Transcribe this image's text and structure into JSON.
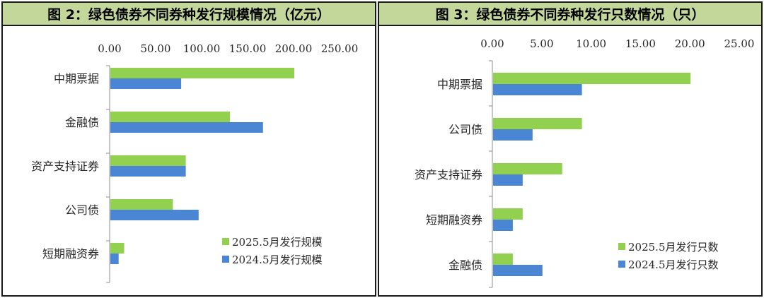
{
  "panels": [
    {
      "title": "图 2：绿色债券不同券种发行规模情况（亿元）"
    },
    {
      "title": "图 3：绿色债券不同券种发行只数情况（只）"
    }
  ],
  "chart_data": [
    {
      "type": "bar",
      "orientation": "horizontal",
      "title": "图 2：绿色债券不同券种发行规模情况（亿元）",
      "categories": [
        "中期票据",
        "金融债",
        "资产支持证券",
        "公司债",
        "短期融资券"
      ],
      "series": [
        {
          "name": "2025.5月发行规模",
          "color": "#92d050",
          "values": [
            200,
            130,
            82,
            68,
            15
          ]
        },
        {
          "name": "2024.5月发行规模",
          "color": "#4a86d4",
          "values": [
            77,
            166,
            82,
            96,
            9
          ]
        }
      ],
      "xlim": [
        0,
        250
      ],
      "xticks": [
        "0.00",
        "50.00",
        "100.00",
        "150.00",
        "200.00",
        "250.00"
      ],
      "axis_position": "top",
      "legend_position": "bottom-right"
    },
    {
      "type": "bar",
      "orientation": "horizontal",
      "title": "图 3：绿色债券不同券种发行只数情况（只）",
      "categories": [
        "中期票据",
        "公司债",
        "资产支持证券",
        "短期融资券",
        "金融债"
      ],
      "series": [
        {
          "name": "2025.5月发行只数",
          "color": "#92d050",
          "values": [
            20,
            9,
            7,
            3,
            2
          ]
        },
        {
          "name": "2024.5月发行只数",
          "color": "#4a86d4",
          "values": [
            9,
            4,
            3,
            2,
            5
          ]
        }
      ],
      "xlim": [
        0,
        25
      ],
      "xticks": [
        "0.00",
        "5.00",
        "10.00",
        "15.00",
        "20.00",
        "25.00"
      ],
      "axis_position": "top",
      "legend_position": "bottom-right"
    }
  ]
}
